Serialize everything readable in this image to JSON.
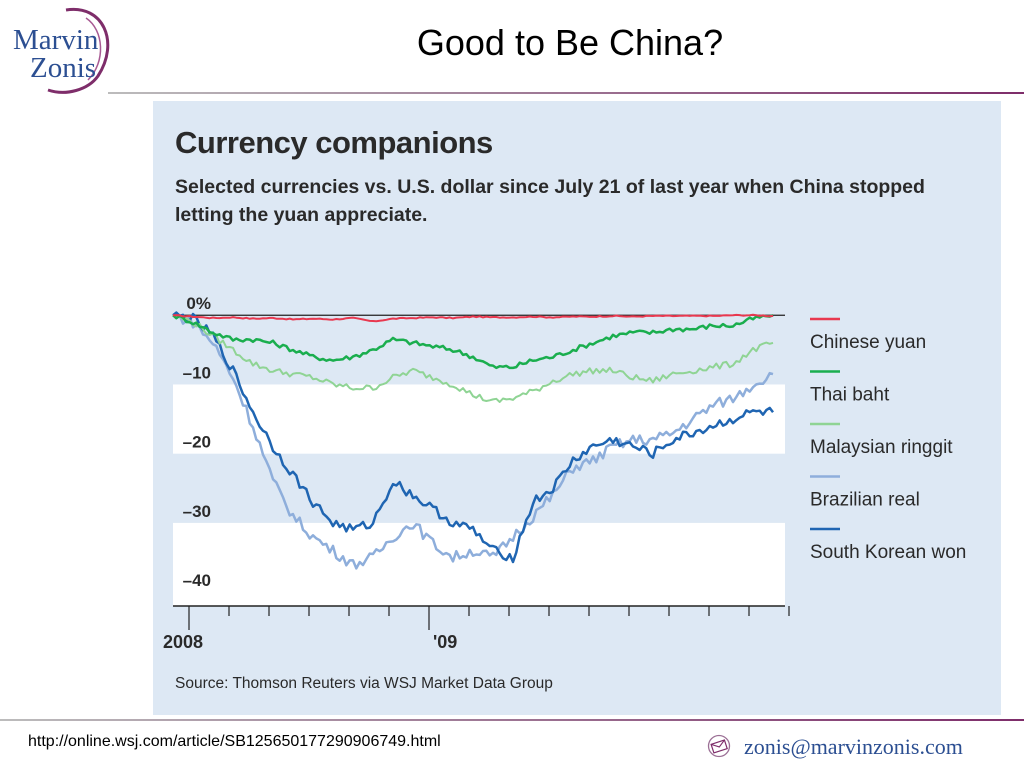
{
  "slide": {
    "title": "Good to Be China?",
    "logo_line1": "Marvin",
    "logo_line2": "Zonis",
    "footer_url": "http://online.wsj.com/article/SB125650177290906749.html",
    "footer_email": "zonis@marvinzonis.com"
  },
  "chart_data": {
    "type": "line",
    "title": "Currency companions",
    "subtitle": "Selected currencies vs. U.S. dollar since July 21 of last year when China stopped letting the yuan appreciate.",
    "source": "Source: Thomson Reuters via WSJ Market Data Group",
    "x_ticks": [
      "2008",
      "'09"
    ],
    "y_tick_labels": [
      "0%",
      "–10",
      "–20",
      "–30",
      "–40"
    ],
    "y_ticks": [
      0,
      -10,
      -20,
      -30,
      -40
    ],
    "ylim": [
      -42,
      10
    ],
    "x_range": [
      0,
      15.3
    ],
    "x_unit": "months since 2008-07-21",
    "grid_bands": true,
    "legend_position": "right",
    "series": [
      {
        "name": "Chinese yuan",
        "color": "#e8384f",
        "width": 2,
        "x": [
          0,
          0.5,
          1,
          1.5,
          2,
          2.5,
          3,
          3.5,
          4,
          4.5,
          5,
          5.5,
          6,
          6.5,
          7,
          7.5,
          8,
          8.5,
          9,
          9.5,
          10,
          10.5,
          11,
          11.5,
          12,
          12.5,
          13,
          13.5,
          14,
          14.5,
          15
        ],
        "y": [
          0,
          -0.2,
          -0.4,
          -0.3,
          -0.5,
          -0.4,
          -0.6,
          -0.5,
          -0.6,
          -0.4,
          -0.9,
          -0.5,
          -0.4,
          -0.3,
          -0.4,
          -0.2,
          -0.3,
          -0.3,
          -0.2,
          -0.3,
          -0.2,
          -0.2,
          -0.1,
          -0.2,
          -0.1,
          -0.1,
          -0.1,
          -0.1,
          0,
          0,
          -0.1
        ]
      },
      {
        "name": "Thai baht",
        "color": "#1aae4e",
        "width": 2.5,
        "x": [
          0,
          0.5,
          1,
          1.5,
          2,
          2.5,
          3,
          3.5,
          4,
          4.5,
          5,
          5.5,
          6,
          6.5,
          7,
          7.5,
          8,
          8.5,
          9,
          9.5,
          10,
          10.5,
          11,
          11.5,
          12,
          12.5,
          13,
          13.5,
          14,
          14.5,
          15
        ],
        "y": [
          0,
          -1,
          -2.5,
          -3.5,
          -3.5,
          -4,
          -5,
          -6,
          -6.5,
          -6,
          -5,
          -3.5,
          -4,
          -4.5,
          -5,
          -6,
          -7.5,
          -7.5,
          -6.5,
          -6,
          -5,
          -4,
          -3,
          -2.5,
          -2.5,
          -2,
          -2,
          -1.5,
          -1.5,
          -0.5,
          0
        ]
      },
      {
        "name": "Malaysian ringgit",
        "color": "#8fd494",
        "width": 2,
        "x": [
          0,
          0.5,
          1,
          1.5,
          2,
          2.5,
          3,
          3.5,
          4,
          4.5,
          5,
          5.5,
          6,
          6.5,
          7,
          7.5,
          8,
          8.5,
          9,
          9.5,
          10,
          10.5,
          11,
          11.5,
          12,
          12.5,
          13,
          13.5,
          14,
          14.5,
          15
        ],
        "y": [
          0,
          -1,
          -3,
          -5,
          -7,
          -8,
          -8.5,
          -9,
          -10,
          -10.5,
          -10.5,
          -9,
          -8,
          -9,
          -10,
          -11.5,
          -12.5,
          -12,
          -11,
          -9.5,
          -8.5,
          -8,
          -8,
          -9,
          -9.5,
          -8.5,
          -8,
          -7.5,
          -7,
          -5,
          -4
        ]
      },
      {
        "name": "Brazilian real",
        "color": "#8eaedb",
        "width": 2.5,
        "x": [
          0,
          0.5,
          1,
          1.5,
          2,
          2.5,
          3,
          3.5,
          4,
          4.5,
          5,
          5.5,
          6,
          6.5,
          7,
          7.5,
          8,
          8.5,
          9,
          9.5,
          10,
          10.5,
          11,
          11.5,
          12,
          12.5,
          13,
          13.5,
          14,
          14.5,
          15
        ],
        "y": [
          0,
          -1,
          -4,
          -9,
          -16,
          -24,
          -29,
          -32,
          -34,
          -36,
          -35,
          -32,
          -30,
          -33,
          -35,
          -34,
          -35,
          -32,
          -29,
          -26,
          -22,
          -21,
          -19,
          -18,
          -18,
          -17,
          -15,
          -13,
          -12,
          -10,
          -8.5
        ]
      },
      {
        "name": "South Korean won",
        "color": "#1f65b2",
        "width": 2.5,
        "x": [
          0,
          0.5,
          1,
          1.5,
          2,
          2.5,
          3,
          3.5,
          4,
          4.5,
          5,
          5.5,
          6,
          6.5,
          7,
          7.5,
          8,
          8.5,
          9,
          9.5,
          10,
          10.5,
          11,
          11.5,
          12,
          12.5,
          13,
          13.5,
          14,
          14.5,
          15
        ],
        "y": [
          0,
          -0.5,
          -3,
          -8,
          -14,
          -19,
          -23,
          -27,
          -30,
          -31,
          -30,
          -24,
          -26,
          -28,
          -30,
          -31,
          -34,
          -35,
          -27,
          -25,
          -21,
          -19,
          -18,
          -19,
          -20,
          -18,
          -17,
          -16,
          -15,
          -14,
          -14
        ]
      }
    ]
  }
}
